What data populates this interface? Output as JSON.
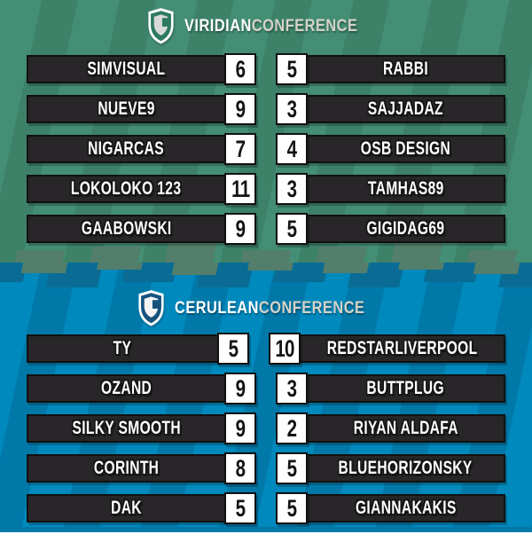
{
  "theme": {
    "green_base": "#438E74",
    "green_stripe": "#3C8168",
    "green_tab": "#527E6B",
    "blue_base": "#0089BD",
    "blue_stripe": "#0079A9",
    "blue_tab": "#0A6C95",
    "bar_color": "#282628",
    "bar_border": "#111111",
    "score_box_bg": "#FFFFFF",
    "score_color": "#131313",
    "title_bold_color": "#FFFFFF",
    "title_light_color": "#D5D2C8",
    "shield_outline": "#FFFFFF",
    "green_shield_fill": "#2E7A5F",
    "green_shield_glyph": "#D9D9D9",
    "blue_shield_fill": "#16527C",
    "blue_shield_glyph": "#F4F4F4"
  },
  "conferences": [
    {
      "name_bold": "VIRIDIAN",
      "name_light": "CONFERENCE",
      "matches": [
        {
          "home": "SIMVISUAL",
          "home_score": "6",
          "away_score": "5",
          "away": "RABBI"
        },
        {
          "home": "NUEVE9",
          "home_score": "9",
          "away_score": "3",
          "away": "SAJJADAZ"
        },
        {
          "home": "NIGARCAS",
          "home_score": "7",
          "away_score": "4",
          "away": "OSB DESIGN"
        },
        {
          "home": "LOKOLOKO 123",
          "home_score": "11",
          "away_score": "3",
          "away": "TAMHAS89"
        },
        {
          "home": "GAABOWSKI",
          "home_score": "9",
          "away_score": "5",
          "away": "GIGIDAG69"
        }
      ]
    },
    {
      "name_bold": "CERULEAN",
      "name_light": "CONFERENCE",
      "matches": [
        {
          "home": "TY",
          "home_score": "5",
          "away_score": "10",
          "away": "REDSTARLIVERPOOL"
        },
        {
          "home": "OZAND",
          "home_score": "9",
          "away_score": "3",
          "away": "BUTTPLUG"
        },
        {
          "home": "SILKY SMOOTH",
          "home_score": "9",
          "away_score": "2",
          "away": "RIYAN ALDAFA"
        },
        {
          "home": "CORINTH",
          "home_score": "8",
          "away_score": "5",
          "away": "BLUEHORIZONSKY"
        },
        {
          "home": "DAK",
          "home_score": "5",
          "away_score": "5",
          "away": "GIANNAKAKIS"
        }
      ]
    }
  ],
  "chart_data": [
    {
      "type": "table",
      "title": "VIRIDIAN CONFERENCE",
      "columns": [
        "home_team",
        "home_score",
        "away_score",
        "away_team"
      ],
      "rows": [
        [
          "SIMVISUAL",
          6,
          5,
          "RABBI"
        ],
        [
          "NUEVE9",
          9,
          3,
          "SAJJADAZ"
        ],
        [
          "NIGARCAS",
          7,
          4,
          "OSB DESIGN"
        ],
        [
          "LOKOLOKO 123",
          11,
          3,
          "TAMHAS89"
        ],
        [
          "GAABOWSKI",
          9,
          5,
          "GIGIDAG69"
        ]
      ]
    },
    {
      "type": "table",
      "title": "CERULEAN CONFERENCE",
      "columns": [
        "home_team",
        "home_score",
        "away_score",
        "away_team"
      ],
      "rows": [
        [
          "TY",
          5,
          10,
          "REDSTARLIVERPOOL"
        ],
        [
          "OZAND",
          9,
          3,
          "BUTTPLUG"
        ],
        [
          "SILKY SMOOTH",
          9,
          2,
          "RIYAN ALDAFA"
        ],
        [
          "CORINTH",
          8,
          5,
          "BLUEHORIZONSKY"
        ],
        [
          "DAK",
          5,
          5,
          "GIANNAKAKIS"
        ]
      ]
    }
  ]
}
